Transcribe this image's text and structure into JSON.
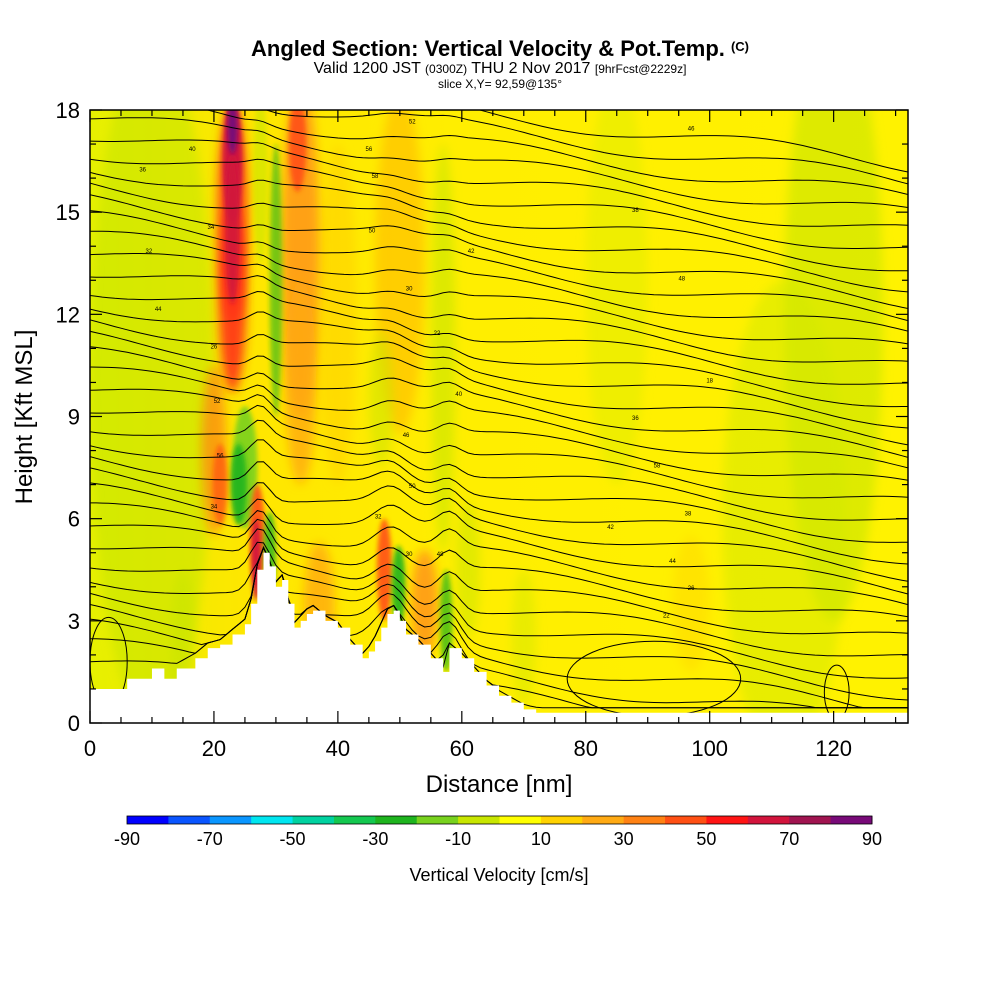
{
  "header": {
    "title": "Angled Section: Vertical Velocity & Pot.Temp.",
    "title_tag": "(C)",
    "valid_prefix": "Valid 1200 JST",
    "valid_utc": "(0300Z)",
    "valid_date": "THU 2 Nov 2017",
    "forecast_tag": "[9hrFcst@2229z]",
    "slice_info": "slice X,Y= 92,59@135°"
  },
  "chart_data": {
    "type": "heatmap",
    "xlabel": "Distance [nm]",
    "ylabel": "Height [Kft MSL]",
    "xlim": [
      0,
      132
    ],
    "ylim": [
      0,
      18
    ],
    "x_ticks": [
      0,
      20,
      40,
      60,
      80,
      100,
      120
    ],
    "y_ticks": [
      0,
      3,
      6,
      9,
      12,
      15,
      18
    ],
    "terrain": {
      "x": [
        0,
        5,
        6,
        10,
        12,
        14,
        17,
        19,
        21,
        23,
        25,
        26,
        27,
        28,
        29,
        30,
        31,
        32,
        33,
        34,
        35,
        36,
        38,
        40,
        42,
        44,
        45,
        46,
        47,
        48,
        49,
        50,
        51,
        53,
        55,
        57,
        58,
        60,
        62,
        64,
        66,
        68,
        70,
        72,
        74,
        132
      ],
      "y": [
        1.0,
        1.0,
        1.3,
        1.6,
        1.3,
        1.6,
        1.9,
        2.2,
        2.3,
        2.6,
        2.9,
        3.5,
        4.5,
        5.0,
        4.6,
        4.0,
        4.2,
        3.5,
        2.8,
        3.0,
        3.2,
        3.3,
        3.0,
        2.8,
        2.3,
        1.9,
        2.1,
        2.4,
        2.8,
        3.2,
        3.3,
        3.0,
        2.6,
        2.3,
        1.9,
        1.5,
        2.2,
        1.9,
        1.5,
        1.1,
        0.8,
        0.6,
        0.4,
        0.3,
        0.3,
        0.3
      ]
    },
    "isentrope_labels": [
      "40",
      "52",
      "36",
      "56",
      "46",
      "58",
      "34",
      "50",
      "38",
      "32",
      "42",
      "30",
      "48",
      "44",
      "26",
      "22",
      "18"
    ],
    "colorbar": {
      "label": "Vertical Velocity [cm/s]",
      "tick_labels": [
        "-90",
        "-70",
        "-50",
        "-30",
        "-10",
        "10",
        "30",
        "50",
        "70",
        "90"
      ],
      "colors": [
        "#0000ff",
        "#0a55ff",
        "#0a96ff",
        "#00e6f0",
        "#00d2a0",
        "#14c850",
        "#1eb41e",
        "#78d21e",
        "#c8e600",
        "#ffff00",
        "#ffd200",
        "#ffaa14",
        "#ff8214",
        "#ff5014",
        "#ff1414",
        "#d2143c",
        "#a01450",
        "#780a78"
      ]
    }
  }
}
